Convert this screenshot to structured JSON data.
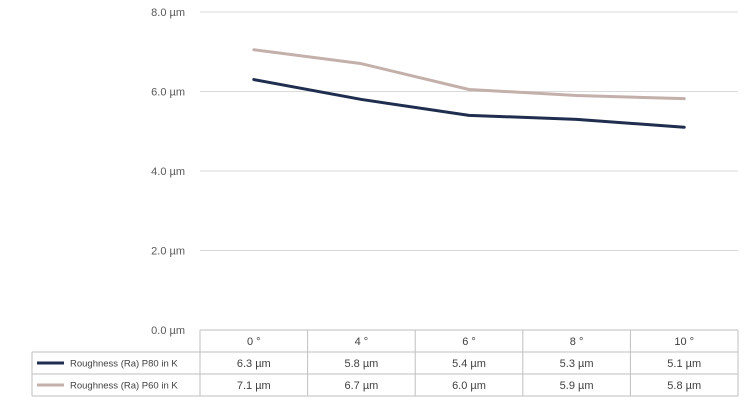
{
  "chart_data": {
    "type": "line",
    "title": "",
    "xlabel": "",
    "ylabel": "",
    "categories": [
      "0 °",
      "4 °",
      "6 °",
      "8 °",
      "10 °"
    ],
    "ylim": [
      0,
      8
    ],
    "yticks": [
      "0.0 µm",
      "2.0 µm",
      "4.0 µm",
      "6.0 µm",
      "8.0 µm"
    ],
    "grid": true,
    "legend": "data-table-left",
    "series": [
      {
        "name": "Roughness (Ra) P80 in K",
        "color": "#1f2d4f",
        "values": [
          6.3,
          5.8,
          5.4,
          5.3,
          5.1
        ],
        "labels": [
          "6.3 µm",
          "5.8 µm",
          "5.4 µm",
          "5.3 µm",
          "5.1 µm"
        ]
      },
      {
        "name": "Roughness (Ra) P60 in K",
        "color": "#c4b0aa",
        "values": [
          7.05,
          6.7,
          6.05,
          5.9,
          5.82
        ],
        "labels": [
          "7.1 µm",
          "6.7 µm",
          "6.0 µm",
          "5.9 µm",
          "5.8 µm"
        ]
      }
    ]
  }
}
